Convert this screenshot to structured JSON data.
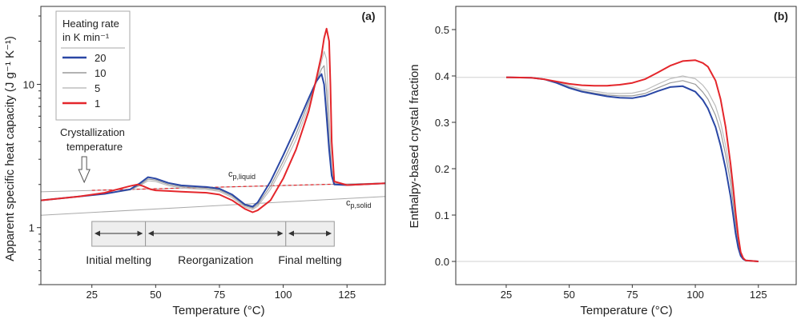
{
  "colors": {
    "rate_20": "#2a47a5",
    "rate_10": "#9a9a9a",
    "rate_5": "#bdbdbd",
    "rate_1": "#e4262b",
    "axis": "#333333",
    "region_fill": "#eeeeee"
  },
  "chart_data": [
    {
      "type": "line",
      "panel_label": "(a)",
      "xlabel": "Temperature (°C)",
      "ylabel": "Apparent specific heat capacity (J g⁻¹ K⁻¹)",
      "xlim": [
        5,
        140
      ],
      "ylim": [
        0.4,
        35
      ],
      "yscale": "log",
      "xticks": [
        25,
        50,
        75,
        100,
        125
      ],
      "yticks": [
        1,
        10
      ],
      "legend": {
        "title_line1": "Heating rate",
        "title_line2": "in K min⁻¹",
        "placement": "top-left",
        "entries": [
          "20",
          "10",
          "5",
          "1"
        ]
      },
      "series": [
        {
          "name": "20",
          "color_key": "rate_20",
          "x": [
            5,
            20,
            30,
            40,
            44,
            47,
            50,
            55,
            60,
            70,
            75,
            80,
            85,
            88,
            90,
            95,
            100,
            105,
            110,
            113,
            115,
            116,
            117,
            118,
            119,
            120,
            125,
            130,
            135,
            140
          ],
          "y": [
            1.55,
            1.65,
            1.72,
            1.85,
            2.05,
            2.25,
            2.2,
            2.05,
            1.97,
            1.92,
            1.87,
            1.7,
            1.45,
            1.4,
            1.5,
            2.1,
            3.2,
            5.0,
            8.0,
            10.5,
            11.8,
            10.0,
            6.0,
            3.5,
            2.3,
            2.0,
            1.98,
            2.0,
            2.02,
            2.04
          ]
        },
        {
          "name": "10",
          "color_key": "rate_10",
          "x": [
            5,
            20,
            30,
            40,
            44,
            47,
            50,
            55,
            60,
            70,
            75,
            80,
            85,
            88,
            90,
            95,
            100,
            105,
            110,
            113,
            115,
            116,
            117,
            118,
            119,
            120,
            125,
            130,
            135,
            140
          ],
          "y": [
            1.55,
            1.65,
            1.72,
            1.84,
            2.0,
            2.18,
            2.15,
            2.0,
            1.93,
            1.88,
            1.83,
            1.66,
            1.42,
            1.37,
            1.45,
            1.95,
            2.9,
            4.5,
            7.5,
            10.5,
            12.8,
            13.5,
            9.0,
            4.0,
            2.4,
            2.02,
            1.98,
            2.0,
            2.02,
            2.04
          ]
        },
        {
          "name": "5",
          "color_key": "rate_5",
          "x": [
            5,
            20,
            30,
            40,
            44,
            47,
            50,
            55,
            60,
            70,
            75,
            80,
            85,
            88,
            90,
            95,
            100,
            105,
            110,
            113,
            115,
            116,
            117,
            118,
            119,
            120,
            125,
            130,
            135,
            140
          ],
          "y": [
            1.55,
            1.65,
            1.72,
            1.83,
            1.97,
            2.12,
            2.1,
            1.96,
            1.89,
            1.84,
            1.79,
            1.62,
            1.39,
            1.34,
            1.41,
            1.85,
            2.7,
            4.1,
            7.0,
            10.5,
            14.5,
            17.0,
            15.0,
            6.0,
            2.6,
            2.05,
            1.98,
            2.0,
            2.02,
            2.04
          ]
        },
        {
          "name": "1",
          "color_key": "rate_1",
          "x": [
            5,
            20,
            30,
            35,
            40,
            43,
            45,
            48,
            50,
            55,
            60,
            70,
            75,
            80,
            85,
            88,
            90,
            95,
            100,
            105,
            110,
            113,
            115,
            116,
            117,
            118,
            118.5,
            119,
            120,
            125,
            130,
            135,
            140
          ],
          "y": [
            1.55,
            1.65,
            1.75,
            1.85,
            1.95,
            2.0,
            1.95,
            1.85,
            1.82,
            1.8,
            1.78,
            1.75,
            1.7,
            1.55,
            1.35,
            1.28,
            1.32,
            1.55,
            2.2,
            3.5,
            6.5,
            11.0,
            16.0,
            21.0,
            24.5,
            20.0,
            10.0,
            4.0,
            2.1,
            1.98,
            2.0,
            2.02,
            2.04
          ]
        }
      ],
      "baselines": [
        {
          "name": "cp,liquid",
          "x": [
            5,
            140
          ],
          "y": [
            1.78,
            2.05
          ],
          "dashed_overlay_x": [
            25,
            120
          ]
        },
        {
          "name": "cp,solid",
          "x": [
            5,
            140
          ],
          "y": [
            1.22,
            1.65
          ]
        }
      ],
      "annotations": {
        "arrow_text_line1": "Crystallization",
        "arrow_text_line2": "temperature",
        "arrow_x": 22,
        "cp_liquid_main": "c",
        "cp_liquid_sub": "p,liquid",
        "cp_solid_main": "c",
        "cp_solid_sub": "p,solid"
      },
      "regions": [
        {
          "label": "Initial melting",
          "x_start": 25,
          "x_end": 46
        },
        {
          "label": "Reorganization",
          "x_start": 46,
          "x_end": 101
        },
        {
          "label": "Final melting",
          "x_start": 101,
          "x_end": 120
        }
      ]
    },
    {
      "type": "line",
      "panel_label": "(b)",
      "xlabel": "Temperature (°C)",
      "ylabel": "Enthalpy-based crystal fraction",
      "xlim": [
        5,
        140
      ],
      "ylim": [
        -0.05,
        0.55
      ],
      "xticks": [
        25,
        50,
        75,
        100,
        125
      ],
      "yticks": [
        0.0,
        0.1,
        0.2,
        0.3,
        0.4,
        0.5
      ],
      "reference_lines_y": [
        0.0,
        0.397
      ],
      "series": [
        {
          "name": "20",
          "color_key": "rate_20",
          "x": [
            25,
            35,
            40,
            45,
            50,
            55,
            60,
            65,
            70,
            75,
            80,
            85,
            90,
            95,
            100,
            103,
            105,
            108,
            110,
            112,
            114,
            115,
            116,
            117,
            118,
            119,
            120,
            125
          ],
          "y": [
            0.397,
            0.396,
            0.393,
            0.385,
            0.374,
            0.366,
            0.361,
            0.356,
            0.353,
            0.352,
            0.357,
            0.367,
            0.376,
            0.378,
            0.366,
            0.348,
            0.33,
            0.29,
            0.25,
            0.2,
            0.14,
            0.1,
            0.06,
            0.03,
            0.012,
            0.005,
            0.002,
            0.0
          ]
        },
        {
          "name": "10",
          "color_key": "rate_10",
          "x": [
            25,
            35,
            40,
            45,
            50,
            55,
            60,
            65,
            70,
            75,
            80,
            85,
            90,
            95,
            100,
            103,
            105,
            108,
            110,
            112,
            114,
            115,
            116,
            117,
            118,
            119,
            120,
            125
          ],
          "y": [
            0.397,
            0.396,
            0.393,
            0.386,
            0.376,
            0.368,
            0.363,
            0.359,
            0.357,
            0.357,
            0.362,
            0.374,
            0.385,
            0.39,
            0.382,
            0.365,
            0.35,
            0.315,
            0.28,
            0.23,
            0.17,
            0.125,
            0.08,
            0.04,
            0.015,
            0.005,
            0.002,
            0.0
          ]
        },
        {
          "name": "5",
          "color_key": "rate_5",
          "x": [
            25,
            35,
            40,
            45,
            50,
            55,
            60,
            65,
            70,
            75,
            80,
            85,
            90,
            95,
            100,
            103,
            105,
            108,
            110,
            112,
            114,
            115,
            116,
            117,
            118,
            119,
            120,
            125
          ],
          "y": [
            0.397,
            0.396,
            0.393,
            0.387,
            0.379,
            0.371,
            0.367,
            0.363,
            0.362,
            0.363,
            0.369,
            0.382,
            0.394,
            0.4,
            0.394,
            0.38,
            0.366,
            0.335,
            0.3,
            0.25,
            0.19,
            0.145,
            0.095,
            0.05,
            0.018,
            0.006,
            0.002,
            0.0
          ]
        },
        {
          "name": "1",
          "color_key": "rate_1",
          "x": [
            25,
            35,
            40,
            45,
            50,
            55,
            60,
            65,
            70,
            75,
            80,
            85,
            90,
            95,
            100,
            103,
            105,
            108,
            110,
            112,
            114,
            115,
            116,
            117,
            118,
            119,
            120,
            125
          ],
          "y": [
            0.397,
            0.396,
            0.393,
            0.388,
            0.383,
            0.38,
            0.379,
            0.379,
            0.381,
            0.385,
            0.393,
            0.407,
            0.422,
            0.432,
            0.434,
            0.428,
            0.42,
            0.39,
            0.35,
            0.29,
            0.21,
            0.16,
            0.105,
            0.055,
            0.02,
            0.007,
            0.002,
            0.0
          ]
        }
      ]
    }
  ]
}
